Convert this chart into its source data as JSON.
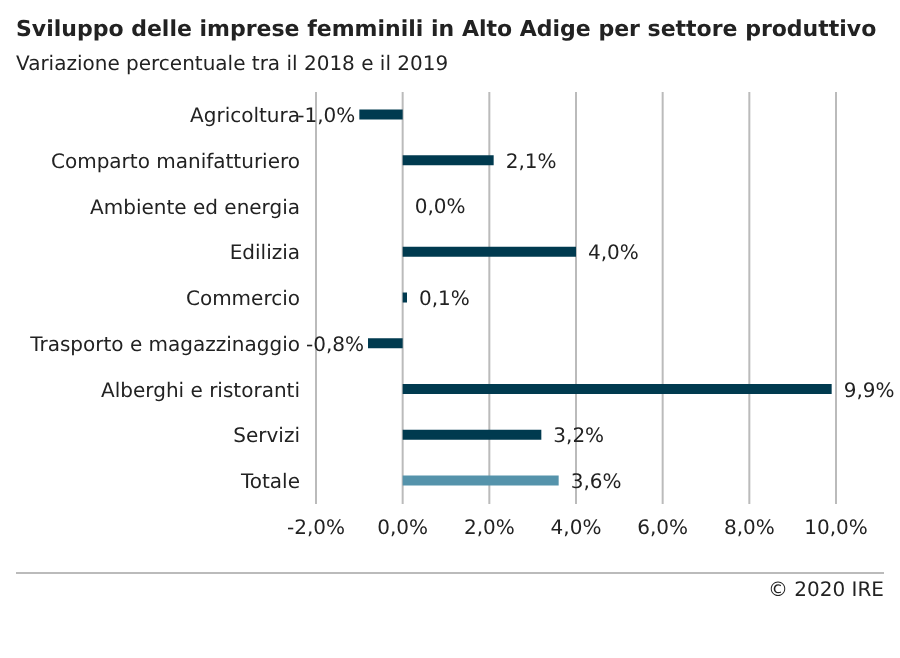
{
  "chart_data": {
    "type": "bar",
    "orientation": "horizontal",
    "title": "Sviluppo delle imprese femminili in Alto Adige per settore produttivo",
    "subtitle": "Variazione percentuale tra il 2018 e il 2019",
    "categories": [
      "Agricoltura",
      "Comparto manifatturiero",
      "Ambiente ed energia",
      "Edilizia",
      "Commercio",
      "Trasporto e magazzinaggio",
      "Alberghi e ristoranti",
      "Servizi",
      "Totale"
    ],
    "values": [
      -1.0,
      2.1,
      0.0,
      4.0,
      0.1,
      -0.8,
      9.9,
      3.2,
      3.6
    ],
    "value_labels": [
      "-1,0%",
      "2,1%",
      "0,0%",
      "4,0%",
      "0,1%",
      "-0,8%",
      "9,9%",
      "3,2%",
      "3,6%"
    ],
    "colors": [
      "#003a4f",
      "#003a4f",
      "#003a4f",
      "#003a4f",
      "#003a4f",
      "#003a4f",
      "#003a4f",
      "#003a4f",
      "#5593ab"
    ],
    "xlim": [
      -2,
      10
    ],
    "xticks": [
      {
        "value": -2,
        "label": "-2,0%"
      },
      {
        "value": 0,
        "label": "0,0%"
      },
      {
        "value": 2,
        "label": "2,0%"
      },
      {
        "value": 4,
        "label": "4,0%"
      },
      {
        "value": 6,
        "label": "6,0%"
      },
      {
        "value": 8,
        "label": "8,0%"
      },
      {
        "value": 10,
        "label": "10,0%"
      }
    ],
    "grid": "x",
    "legend": false,
    "annotations": [
      "© 2020 IRE"
    ]
  }
}
